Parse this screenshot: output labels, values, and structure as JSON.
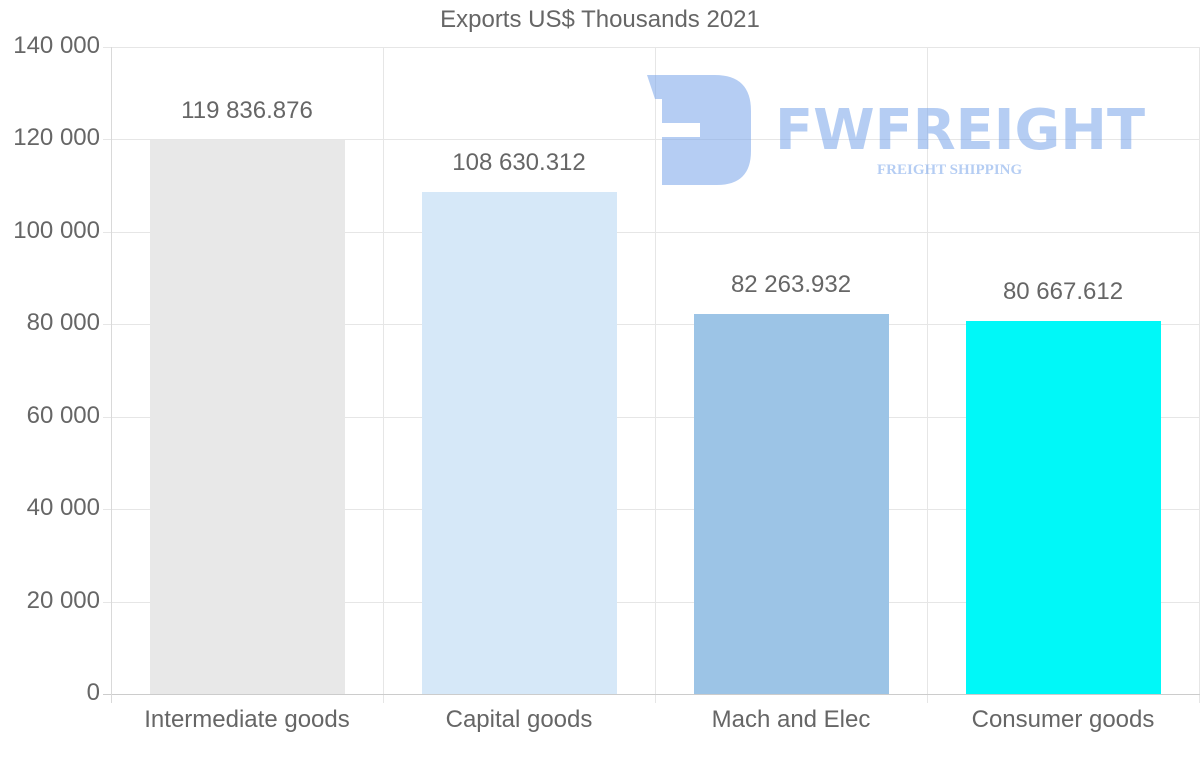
{
  "chart_data": {
    "type": "bar",
    "title": "Exports US$ Thousands 2021",
    "xlabel": "",
    "ylabel": "",
    "categories": [
      "Intermediate goods",
      "Capital goods",
      "Mach and Elec",
      "Consumer goods"
    ],
    "values": [
      119836.876,
      108630.312,
      82263.932,
      80667.612
    ],
    "value_labels": [
      "119 836.876",
      "108 630.312",
      "82 263.932",
      "80 667.612"
    ],
    "colors": [
      "#e8e8e8",
      "#d6e8f8",
      "#9cc4e6",
      "#00f8f8"
    ],
    "ylim": [
      0,
      140000
    ],
    "yticks": [
      0,
      20000,
      40000,
      60000,
      80000,
      100000,
      120000,
      140000
    ],
    "ytick_labels": [
      "0",
      "20 000",
      "40 000",
      "60 000",
      "80 000",
      "100 000",
      "120 000",
      "140 000"
    ],
    "grid": true,
    "legend": "none"
  },
  "watermark": {
    "brand": "FWFREIGHT",
    "tagline": "FREIGHT SHIPPING",
    "color": "#7aa6ea"
  }
}
